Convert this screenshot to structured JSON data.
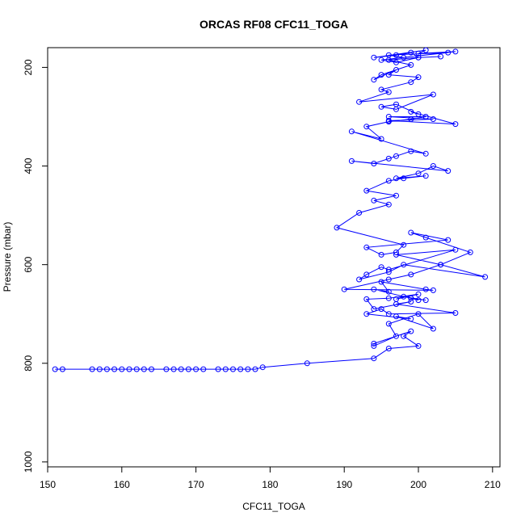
{
  "chart_data": {
    "type": "line",
    "title": "ORCAS RF08 CFC11_TOGA",
    "xlabel": "CFC11_TOGA",
    "ylabel": "Pressure (mbar)",
    "xlim": [
      150,
      211
    ],
    "ylim": [
      1010,
      160
    ],
    "y_reversed": true,
    "x_ticks": [
      150,
      160,
      170,
      180,
      190,
      200,
      210
    ],
    "y_ticks": [
      200,
      400,
      600,
      800,
      1000
    ],
    "grid": false,
    "legend": "none",
    "series_color": "#0000ff",
    "marker": "open-circle",
    "x": [
      151,
      152,
      156,
      157,
      158,
      159,
      160,
      161,
      162,
      163,
      164,
      166,
      167,
      168,
      169,
      170,
      171,
      173,
      174,
      175,
      176,
      177,
      178,
      179,
      185,
      194,
      196,
      200,
      198,
      199,
      194,
      194,
      197,
      196,
      200,
      202,
      197,
      199,
      193,
      195,
      196,
      205,
      197,
      199,
      194,
      193,
      196,
      200,
      197,
      198,
      201,
      199,
      199,
      200,
      194,
      196,
      195,
      201,
      202,
      190,
      196,
      199,
      203,
      209,
      198,
      196,
      192,
      193,
      195,
      196,
      205,
      197,
      203,
      207,
      201,
      199,
      204,
      193,
      195,
      197,
      198,
      189,
      192,
      196,
      194,
      197,
      193,
      196,
      198,
      201,
      197,
      200,
      202,
      204,
      191,
      194,
      196,
      197,
      199,
      201,
      191,
      195,
      193,
      196,
      199,
      201,
      196,
      202,
      196,
      205,
      199,
      200,
      197,
      195,
      197,
      202,
      192,
      196,
      195,
      199,
      200,
      196,
      197,
      194,
      195,
      199,
      196,
      200,
      197,
      195,
      204,
      196,
      198,
      205,
      200,
      201,
      194,
      197,
      199,
      200,
      203
    ],
    "y": [
      812,
      812,
      812,
      812,
      812,
      812,
      812,
      812,
      812,
      812,
      812,
      812,
      812,
      812,
      812,
      812,
      812,
      812,
      812,
      812,
      812,
      812,
      812,
      808,
      800,
      790,
      770,
      765,
      745,
      735,
      760,
      765,
      745,
      720,
      700,
      730,
      705,
      710,
      700,
      690,
      700,
      698,
      680,
      675,
      690,
      670,
      668,
      660,
      670,
      665,
      672,
      668,
      668,
      672,
      650,
      655,
      635,
      650,
      652,
      650,
      630,
      620,
      600,
      625,
      600,
      615,
      630,
      620,
      605,
      610,
      570,
      580,
      600,
      575,
      545,
      535,
      550,
      565,
      580,
      575,
      560,
      525,
      495,
      478,
      470,
      460,
      450,
      430,
      425,
      420,
      425,
      415,
      400,
      410,
      390,
      395,
      385,
      380,
      370,
      375,
      330,
      345,
      320,
      310,
      305,
      300,
      300,
      305,
      308,
      315,
      290,
      295,
      275,
      280,
      285,
      255,
      270,
      250,
      245,
      230,
      220,
      215,
      205,
      225,
      215,
      195,
      185,
      180,
      190,
      185,
      170,
      175,
      180,
      168,
      172,
      165,
      180,
      175,
      170,
      180,
      178
    ]
  }
}
